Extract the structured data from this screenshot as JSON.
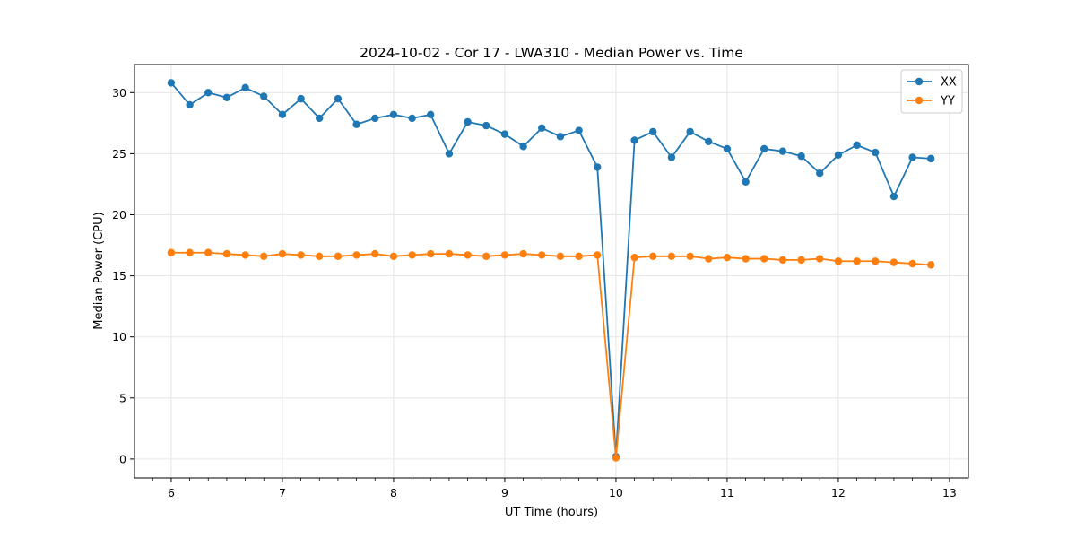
{
  "chart_data": {
    "type": "line",
    "title": "2024-10-02 - Cor 17 - LWA310 - Median Power vs. Time",
    "xlabel": "UT Time (hours)",
    "ylabel": "Median Power (CPU)",
    "xlim": [
      5.67,
      13.17
    ],
    "ylim": [
      -1.55,
      32.3
    ],
    "xticks": [
      6,
      7,
      8,
      9,
      10,
      11,
      12,
      13
    ],
    "yticks": [
      0,
      5,
      10,
      15,
      20,
      25,
      30
    ],
    "grid": true,
    "legend_position": "top-right",
    "series": [
      {
        "name": "XX",
        "color": "#1f77b4",
        "marker": "circle",
        "points": [
          [
            6.0,
            30.8
          ],
          [
            6.167,
            29.0
          ],
          [
            6.333,
            30.0
          ],
          [
            6.5,
            29.6
          ],
          [
            6.667,
            30.4
          ],
          [
            6.833,
            29.7
          ],
          [
            7.0,
            28.2
          ],
          [
            7.167,
            29.5
          ],
          [
            7.333,
            27.9
          ],
          [
            7.5,
            29.5
          ],
          [
            7.667,
            27.4
          ],
          [
            7.833,
            27.9
          ],
          [
            8.0,
            28.2
          ],
          [
            8.167,
            27.9
          ],
          [
            8.333,
            28.2
          ],
          [
            8.5,
            25.0
          ],
          [
            8.667,
            27.6
          ],
          [
            8.833,
            27.3
          ],
          [
            9.0,
            26.6
          ],
          [
            9.167,
            25.6
          ],
          [
            9.333,
            27.1
          ],
          [
            9.5,
            26.4
          ],
          [
            9.667,
            26.9
          ],
          [
            9.833,
            23.9
          ],
          [
            10.0,
            0.2
          ],
          [
            10.167,
            26.1
          ],
          [
            10.333,
            26.8
          ],
          [
            10.5,
            24.7
          ],
          [
            10.667,
            26.8
          ],
          [
            10.833,
            26.0
          ],
          [
            11.0,
            25.4
          ],
          [
            11.167,
            22.7
          ],
          [
            11.333,
            25.4
          ],
          [
            11.5,
            25.2
          ],
          [
            11.667,
            24.8
          ],
          [
            11.833,
            23.4
          ],
          [
            12.0,
            24.9
          ],
          [
            12.167,
            25.7
          ],
          [
            12.333,
            25.1
          ],
          [
            12.5,
            21.5
          ],
          [
            12.667,
            24.7
          ],
          [
            12.833,
            24.6
          ]
        ]
      },
      {
        "name": "YY",
        "color": "#ff7f0e",
        "marker": "circle",
        "points": [
          [
            6.0,
            16.9
          ],
          [
            6.167,
            16.9
          ],
          [
            6.333,
            16.9
          ],
          [
            6.5,
            16.8
          ],
          [
            6.667,
            16.7
          ],
          [
            6.833,
            16.6
          ],
          [
            7.0,
            16.8
          ],
          [
            7.167,
            16.7
          ],
          [
            7.333,
            16.6
          ],
          [
            7.5,
            16.6
          ],
          [
            7.667,
            16.7
          ],
          [
            7.833,
            16.8
          ],
          [
            8.0,
            16.6
          ],
          [
            8.167,
            16.7
          ],
          [
            8.333,
            16.8
          ],
          [
            8.5,
            16.8
          ],
          [
            8.667,
            16.7
          ],
          [
            8.833,
            16.6
          ],
          [
            9.0,
            16.7
          ],
          [
            9.167,
            16.8
          ],
          [
            9.333,
            16.7
          ],
          [
            9.5,
            16.6
          ],
          [
            9.667,
            16.6
          ],
          [
            9.833,
            16.7
          ],
          [
            10.0,
            0.1
          ],
          [
            10.167,
            16.5
          ],
          [
            10.333,
            16.6
          ],
          [
            10.5,
            16.6
          ],
          [
            10.667,
            16.6
          ],
          [
            10.833,
            16.4
          ],
          [
            11.0,
            16.5
          ],
          [
            11.167,
            16.4
          ],
          [
            11.333,
            16.4
          ],
          [
            11.5,
            16.3
          ],
          [
            11.667,
            16.3
          ],
          [
            11.833,
            16.4
          ],
          [
            12.0,
            16.2
          ],
          [
            12.167,
            16.2
          ],
          [
            12.333,
            16.2
          ],
          [
            12.5,
            16.1
          ],
          [
            12.667,
            16.0
          ],
          [
            12.833,
            15.9
          ]
        ]
      }
    ]
  }
}
